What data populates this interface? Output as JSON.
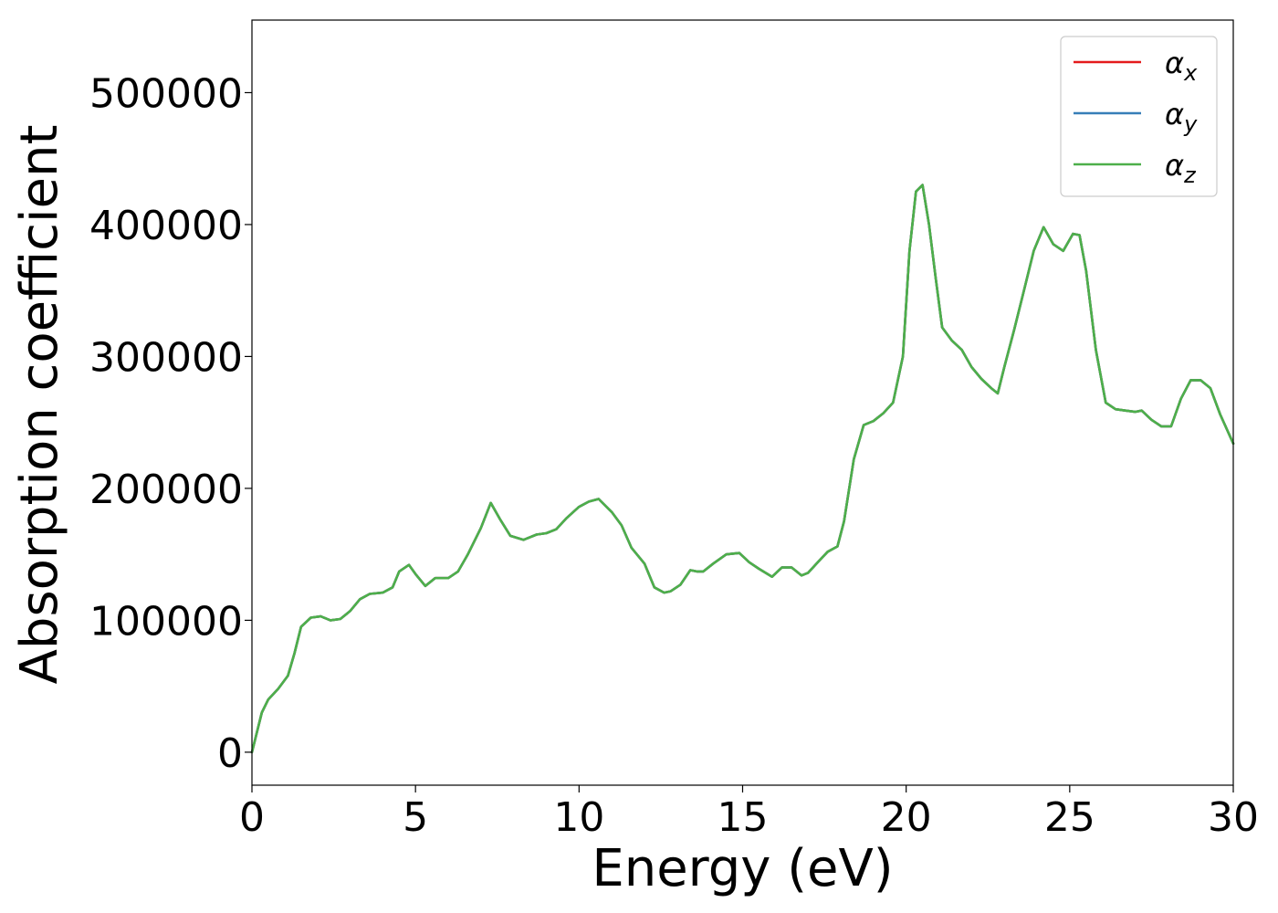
{
  "chart_data": {
    "type": "line",
    "title": "",
    "xlabel": "Energy (eV)",
    "ylabel": "Absorption coefficient",
    "xlim": [
      0,
      30
    ],
    "ylim": [
      -25000,
      555000
    ],
    "xticks": [
      0,
      5,
      10,
      15,
      20,
      25,
      30
    ],
    "xtick_labels": [
      "0",
      "5",
      "10",
      "15",
      "20",
      "25",
      "30"
    ],
    "yticks": [
      0,
      100000,
      200000,
      300000,
      400000,
      500000
    ],
    "ytick_labels": [
      "0",
      "100000",
      "200000",
      "300000",
      "400000",
      "500000"
    ],
    "grid": false,
    "legend_position": "top-right",
    "x": [
      0,
      0.1,
      0.3,
      0.5,
      0.8,
      1.1,
      1.3,
      1.5,
      1.8,
      2.1,
      2.4,
      2.7,
      3.0,
      3.3,
      3.6,
      4.0,
      4.3,
      4.5,
      4.8,
      5.0,
      5.3,
      5.6,
      6.0,
      6.3,
      6.6,
      7.0,
      7.3,
      7.6,
      7.9,
      8.3,
      8.7,
      9.0,
      9.3,
      9.6,
      10.0,
      10.3,
      10.6,
      11.0,
      11.3,
      11.6,
      12.0,
      12.3,
      12.6,
      12.8,
      13.1,
      13.4,
      13.6,
      13.8,
      14.1,
      14.5,
      14.9,
      15.2,
      15.5,
      15.9,
      16.2,
      16.5,
      16.8,
      17.0,
      17.3,
      17.6,
      17.9,
      18.1,
      18.4,
      18.7,
      19.0,
      19.3,
      19.6,
      19.9,
      20.1,
      20.3,
      20.5,
      20.7,
      20.9,
      21.1,
      21.4,
      21.7,
      22.0,
      22.3,
      22.6,
      22.8,
      23.0,
      23.3,
      23.6,
      23.9,
      24.2,
      24.5,
      24.8,
      25.1,
      25.3,
      25.5,
      25.8,
      26.1,
      26.4,
      26.7,
      27.0,
      27.2,
      27.5,
      27.8,
      28.1,
      28.4,
      28.7,
      29.0,
      29.3,
      29.6,
      30.0
    ],
    "series": [
      {
        "name": "α_x",
        "legend_main": "α",
        "legend_sub": "x",
        "color": "#e41a1c",
        "values": [
          0,
          10000,
          30000,
          40000,
          48000,
          58000,
          75000,
          95000,
          102000,
          103000,
          100000,
          101000,
          107000,
          116000,
          120000,
          121000,
          125000,
          137000,
          142000,
          135000,
          126000,
          132000,
          132000,
          137000,
          150000,
          170000,
          189000,
          176000,
          164000,
          161000,
          165000,
          166000,
          169000,
          177000,
          186000,
          190000,
          192000,
          182000,
          172000,
          155000,
          143000,
          125000,
          121000,
          122000,
          127000,
          138000,
          137000,
          137000,
          143000,
          150000,
          151000,
          144000,
          139000,
          133000,
          140000,
          140000,
          134000,
          136000,
          144000,
          152000,
          156000,
          175000,
          222000,
          248000,
          251000,
          257000,
          265000,
          300000,
          380000,
          425000,
          430000,
          400000,
          360000,
          322000,
          312000,
          305000,
          292000,
          283000,
          276000,
          272000,
          292000,
          320000,
          350000,
          380000,
          398000,
          385000,
          380000,
          393000,
          392000,
          365000,
          305000,
          265000,
          260000,
          259000,
          258000,
          259000,
          252000,
          247000,
          247000,
          268000,
          282000,
          282000,
          276000,
          256000,
          234000
        ]
      },
      {
        "name": "α_y",
        "legend_main": "α",
        "legend_sub": "y",
        "color": "#377eb8",
        "values": [
          0,
          10000,
          30000,
          40000,
          48000,
          58000,
          75000,
          95000,
          102000,
          103000,
          100000,
          101000,
          107000,
          116000,
          120000,
          121000,
          125000,
          137000,
          142000,
          135000,
          126000,
          132000,
          132000,
          137000,
          150000,
          170000,
          189000,
          176000,
          164000,
          161000,
          165000,
          166000,
          169000,
          177000,
          186000,
          190000,
          192000,
          182000,
          172000,
          155000,
          143000,
          125000,
          121000,
          122000,
          127000,
          138000,
          137000,
          137000,
          143000,
          150000,
          151000,
          144000,
          139000,
          133000,
          140000,
          140000,
          134000,
          136000,
          144000,
          152000,
          156000,
          175000,
          222000,
          248000,
          251000,
          257000,
          265000,
          300000,
          380000,
          425000,
          430000,
          400000,
          360000,
          322000,
          312000,
          305000,
          292000,
          283000,
          276000,
          272000,
          292000,
          320000,
          350000,
          380000,
          398000,
          385000,
          380000,
          393000,
          392000,
          365000,
          305000,
          265000,
          260000,
          259000,
          258000,
          259000,
          252000,
          247000,
          247000,
          268000,
          282000,
          282000,
          276000,
          256000,
          234000
        ]
      },
      {
        "name": "α_z",
        "legend_main": "α",
        "legend_sub": "z",
        "color": "#4daf4a",
        "values": [
          0,
          10000,
          30000,
          40000,
          48000,
          58000,
          75000,
          95000,
          102000,
          103000,
          100000,
          101000,
          107000,
          116000,
          120000,
          121000,
          125000,
          137000,
          142000,
          135000,
          126000,
          132000,
          132000,
          137000,
          150000,
          170000,
          189000,
          176000,
          164000,
          161000,
          165000,
          166000,
          169000,
          177000,
          186000,
          190000,
          192000,
          182000,
          172000,
          155000,
          143000,
          125000,
          121000,
          122000,
          127000,
          138000,
          137000,
          137000,
          143000,
          150000,
          151000,
          144000,
          139000,
          133000,
          140000,
          140000,
          134000,
          136000,
          144000,
          152000,
          156000,
          175000,
          222000,
          248000,
          251000,
          257000,
          265000,
          300000,
          380000,
          425000,
          430000,
          400000,
          360000,
          322000,
          312000,
          305000,
          292000,
          283000,
          276000,
          272000,
          292000,
          320000,
          350000,
          380000,
          398000,
          385000,
          380000,
          393000,
          392000,
          365000,
          305000,
          265000,
          260000,
          259000,
          258000,
          259000,
          252000,
          247000,
          247000,
          268000,
          282000,
          282000,
          276000,
          256000,
          234000
        ]
      }
    ]
  }
}
